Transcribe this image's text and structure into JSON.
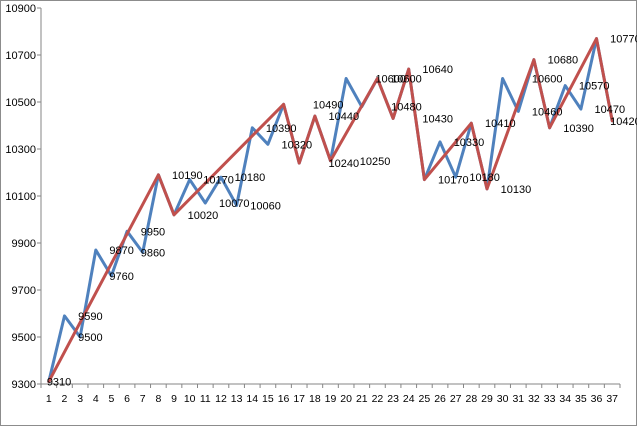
{
  "chart_data": {
    "type": "line",
    "title": "",
    "xlabel": "",
    "ylabel": "",
    "ylim": [
      9300,
      10900
    ],
    "yticks": [
      9300,
      9500,
      9700,
      9900,
      10100,
      10300,
      10500,
      10700,
      10900
    ],
    "grid": false,
    "legend": "none",
    "categories": [
      "1",
      "2",
      "3",
      "4",
      "5",
      "6",
      "7",
      "8",
      "9",
      "10",
      "11",
      "12",
      "13",
      "14",
      "15",
      "16",
      "17",
      "18",
      "19",
      "20",
      "21",
      "22",
      "23",
      "24",
      "25",
      "26",
      "27",
      "28",
      "29",
      "30",
      "31",
      "32",
      "33",
      "34",
      "35",
      "36",
      "37"
    ],
    "series": [
      {
        "color": "#4f81bd",
        "values": [
          9310,
          9590,
          9500,
          9870,
          9760,
          9950,
          9860,
          10190,
          10020,
          10170,
          10070,
          10180,
          10060,
          10390,
          10320,
          10490,
          10240,
          10440,
          10250,
          10600,
          10480,
          10600,
          10430,
          10640,
          10170,
          10330,
          10180,
          10410,
          10130,
          10600,
          10460,
          10680,
          10390,
          10570,
          10470,
          10770,
          10420
        ]
      },
      {
        "color": "#c0504d",
        "x": [
          "1",
          "8",
          "9",
          "16",
          "17",
          "18",
          "19",
          "22",
          "23",
          "24",
          "25",
          "28",
          "29",
          "32",
          "33",
          "36",
          "37"
        ],
        "values": [
          9310,
          10190,
          10020,
          10490,
          10240,
          10440,
          10250,
          10600,
          10430,
          10640,
          10170,
          10410,
          10130,
          10680,
          10390,
          10770,
          10420
        ]
      }
    ],
    "data_labels": [
      {
        "x": "1",
        "text": "9310"
      },
      {
        "x": "3",
        "text": "9590"
      },
      {
        "x": "3",
        "text": "9500"
      },
      {
        "x": "5",
        "text": "9870"
      },
      {
        "x": "5",
        "text": "9760"
      },
      {
        "x": "7",
        "text": "9950"
      },
      {
        "x": "7",
        "text": "9860"
      },
      {
        "x": "9",
        "text": "10190"
      },
      {
        "x": "10",
        "text": "10020"
      },
      {
        "x": "11",
        "text": "10170"
      },
      {
        "x": "12",
        "text": "10070"
      },
      {
        "x": "13",
        "text": "10180"
      },
      {
        "x": "14",
        "text": "10060"
      },
      {
        "x": "15",
        "text": "10390"
      },
      {
        "x": "16",
        "text": "10320"
      },
      {
        "x": "18",
        "text": "10490"
      },
      {
        "x": "19",
        "text": "10240"
      },
      {
        "x": "19",
        "text": "10440"
      },
      {
        "x": "21",
        "text": "10250"
      },
      {
        "x": "22",
        "text": "10600"
      },
      {
        "x": "23",
        "text": "10480"
      },
      {
        "x": "23",
        "text": "10600"
      },
      {
        "x": "25",
        "text": "10430"
      },
      {
        "x": "25",
        "text": "10640"
      },
      {
        "x": "26",
        "text": "10170"
      },
      {
        "x": "27",
        "text": "10330"
      },
      {
        "x": "28",
        "text": "10180"
      },
      {
        "x": "29",
        "text": "10410"
      },
      {
        "x": "30",
        "text": "10130"
      },
      {
        "x": "32",
        "text": "10600"
      },
      {
        "x": "32",
        "text": "10460"
      },
      {
        "x": "33",
        "text": "10680"
      },
      {
        "x": "34",
        "text": "10390"
      },
      {
        "x": "35",
        "text": "10570"
      },
      {
        "x": "36",
        "text": "10470"
      },
      {
        "x": "37",
        "text": "10770"
      },
      {
        "x": "37",
        "text": "10420"
      }
    ]
  }
}
